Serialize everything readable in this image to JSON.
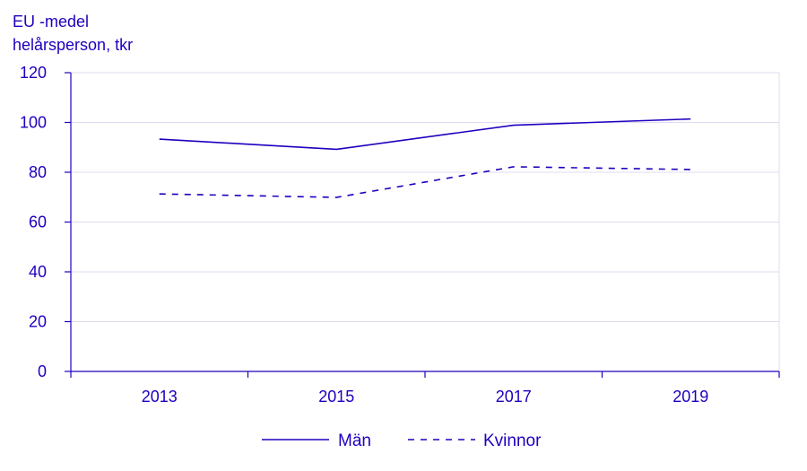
{
  "chart_data": {
    "type": "line",
    "title": "",
    "ylabel_lines": [
      "EU -medel",
      "helårsperson, tkr"
    ],
    "xlabel": "",
    "categories": [
      "2013",
      "2015",
      "2017",
      "2019"
    ],
    "y_ticks": [
      "0",
      "20",
      "40",
      "60",
      "80",
      "100",
      "120"
    ],
    "ylim": [
      0,
      120
    ],
    "grid": true,
    "legend_position": "bottom",
    "series": [
      {
        "name": "Män",
        "values": [
          93.3,
          89.2,
          98.9,
          101.4
        ],
        "dash": "solid",
        "color": "#1e00be"
      },
      {
        "name": "Kvinnor",
        "values": [
          71.3,
          69.9,
          82.2,
          81.1
        ],
        "dash": "dashed",
        "color": "#1e00be"
      }
    ],
    "colors": {
      "axis": "#1e00be",
      "grid": "#dcdcf0",
      "text": "#1e00be"
    }
  }
}
